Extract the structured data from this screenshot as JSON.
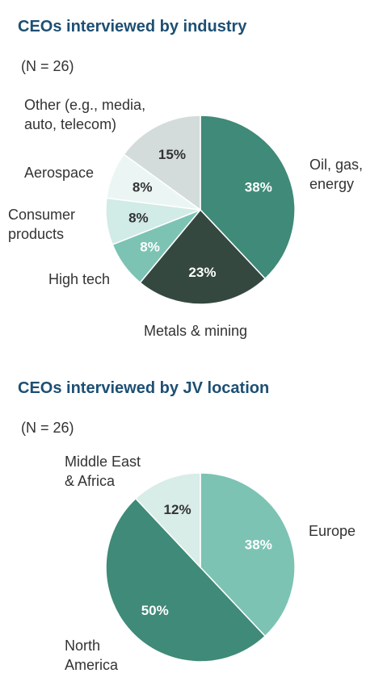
{
  "chart_data": [
    {
      "type": "pie",
      "title": "CEOs interviewed by industry",
      "subtitle": "(N = 26)",
      "slices": [
        {
          "label": "Oil, gas,\nenergy",
          "value": 38,
          "display": "38%",
          "color": "#3f8a78",
          "text_color": "#ffffff"
        },
        {
          "label": "Metals & mining",
          "value": 23,
          "display": "23%",
          "color": "#34483f",
          "text_color": "#ffffff"
        },
        {
          "label": "High tech",
          "value": 8,
          "display": "8%",
          "color": "#7cc3b4",
          "text_color": "#ffffff"
        },
        {
          "label": "Consumer\nproducts",
          "value": 8,
          "display": "8%",
          "color": "#d1ebe6",
          "text_color": "#333333"
        },
        {
          "label": "Aerospace",
          "value": 8,
          "display": "8%",
          "color": "#ebf5f4",
          "text_color": "#333333"
        },
        {
          "label": "Other (e.g., media,\nauto, telecom)",
          "value": 15,
          "display": "15%",
          "color": "#d3dcda",
          "text_color": "#333333"
        }
      ]
    },
    {
      "type": "pie",
      "title": "CEOs interviewed by JV location",
      "subtitle": "(N = 26)",
      "slices": [
        {
          "label": "Europe",
          "value": 38,
          "display": "38%",
          "color": "#7cc3b4",
          "text_color": "#ffffff"
        },
        {
          "label": "North\nAmerica",
          "value": 50,
          "display": "50%",
          "color": "#3f8a78",
          "text_color": "#ffffff"
        },
        {
          "label": "Middle East\n& Africa",
          "value": 12,
          "display": "12%",
          "color": "#d8ece8",
          "text_color": "#333333"
        }
      ]
    }
  ]
}
